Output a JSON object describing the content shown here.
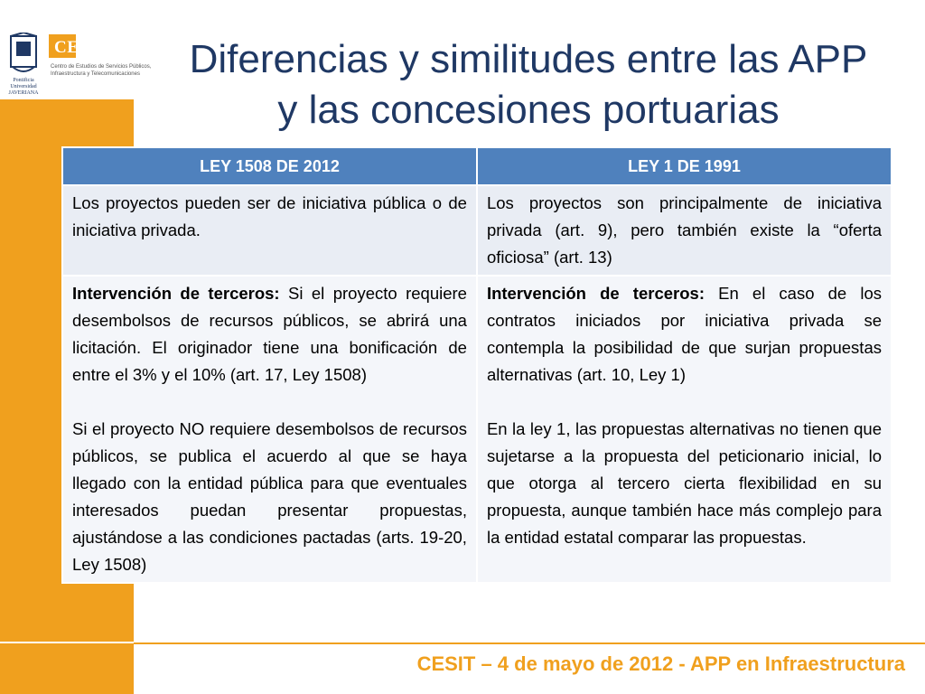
{
  "logo": {
    "seal_text": "Pontificia Universidad JAVERIANA",
    "cesit_name": "CESIT",
    "cesit_subtitle": "Centro de Estudios de Servicios Públicos, Infraestructura y Telecomunicaciones"
  },
  "title": {
    "line1": "Diferencias y similitudes entre las APP",
    "line2": "y las concesiones portuarias"
  },
  "table": {
    "headers": [
      "LEY 1508 DE 2012",
      "LEY 1 DE 1991"
    ],
    "rows": [
      {
        "left": {
          "paragraphs": [
            {
              "bold": "",
              "text": "Los proyectos pueden ser de iniciativa pública o de iniciativa privada."
            }
          ]
        },
        "right": {
          "paragraphs": [
            {
              "bold": "",
              "text": "Los proyectos son principalmente de iniciativa privada (art. 9), pero también existe la “oferta oficiosa” (art. 13)"
            }
          ]
        }
      },
      {
        "left": {
          "paragraphs": [
            {
              "bold": "Intervención de terceros:",
              "text": " Si el proyecto requiere desembolsos de recursos públicos, se abrirá una licitación.  El originador tiene una bonificación de entre el 3% y el 10% (art. 17, Ley 1508)"
            },
            {
              "bold": "",
              "text": "Si el proyecto NO requiere desembolsos de recursos públicos, se publica el acuerdo al que se haya llegado con la entidad pública para que eventuales interesados puedan presentar propuestas, ajustándose a las condiciones pactadas (arts. 19-20, Ley 1508)"
            }
          ]
        },
        "right": {
          "paragraphs": [
            {
              "bold": "Intervención de terceros:",
              "text": " En el caso de los contratos iniciados por iniciativa privada se contempla la posibilidad de que surjan propuestas alternativas (art. 10, Ley 1)"
            },
            {
              "bold": "",
              "text": "En la ley 1, las propuestas alternativas no tienen que sujetarse a la propuesta del peticionario inicial, lo que otorga al tercero cierta flexibilidad en su propuesta, aunque también hace más complejo para la entidad estatal comparar las propuestas."
            }
          ]
        }
      }
    ]
  },
  "footer": {
    "text": "CESIT – 4 de mayo de 2012 - APP en Infraestructura"
  },
  "colors": {
    "accent_orange": "#f0a01e",
    "header_blue": "#4f81bd",
    "title_navy": "#1f3864"
  }
}
